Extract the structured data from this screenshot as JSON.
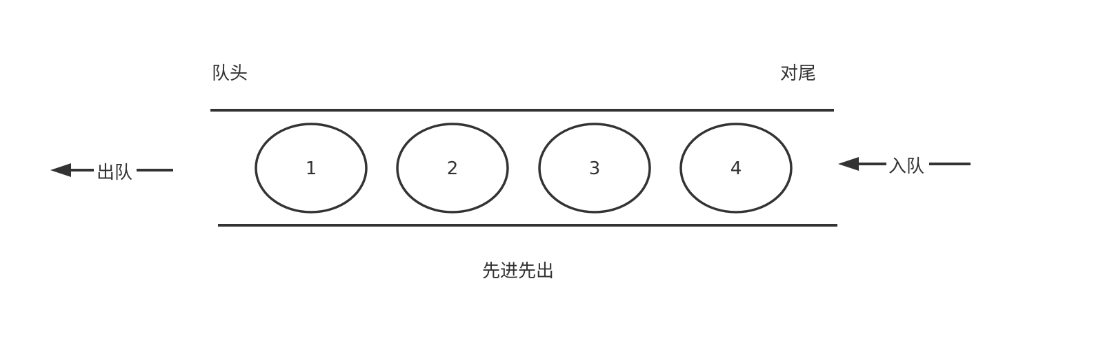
{
  "diagram": {
    "head_label": "队头",
    "tail_label": "对尾",
    "dequeue_label": "出队",
    "enqueue_label": "入队",
    "caption": "先进先出",
    "nodes": [
      "1",
      "2",
      "3",
      "4"
    ]
  },
  "colors": {
    "stroke": "#333333",
    "background": "#ffffff"
  }
}
